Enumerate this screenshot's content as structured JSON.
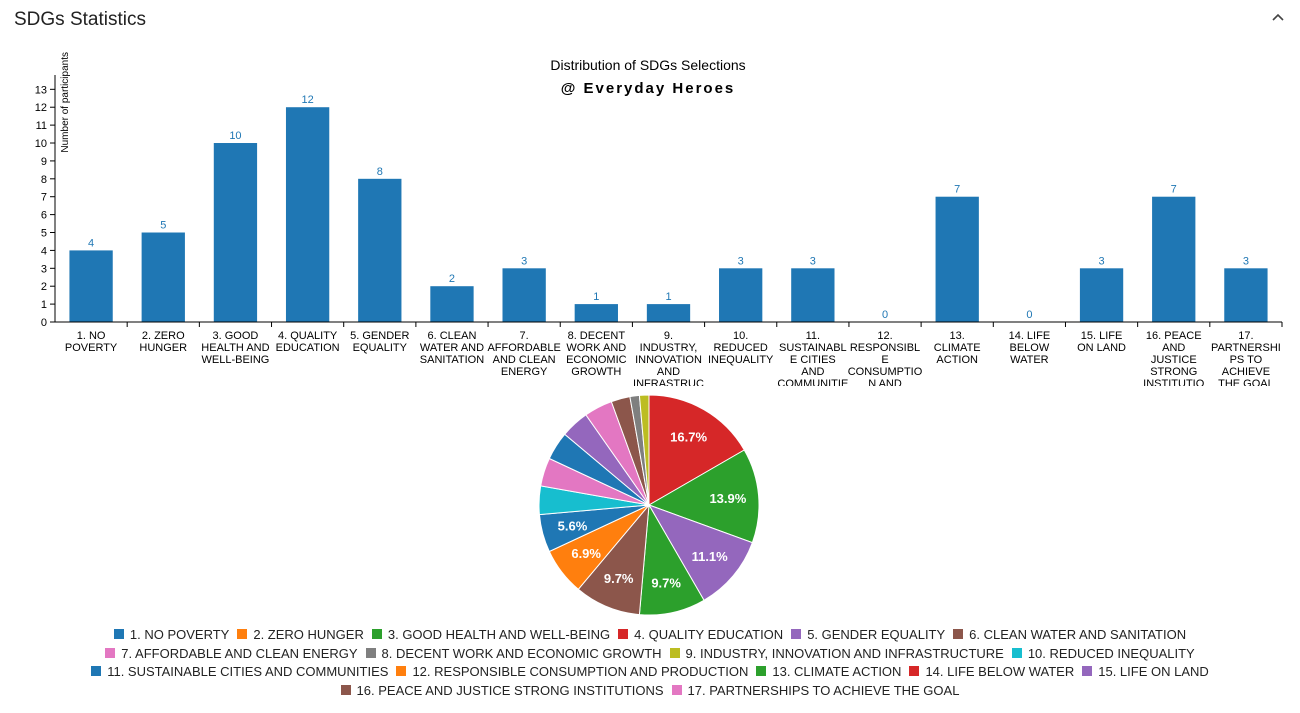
{
  "panel": {
    "title": "SDGs Statistics",
    "collapse_icon": "chevron-up-icon"
  },
  "chart_data": [
    {
      "type": "bar",
      "title": "Distribution of SDGs Selections",
      "subtitle": "@ Everyday Heroes",
      "xlabel": "",
      "ylabel": "Number of participants",
      "ylim": [
        0,
        13
      ],
      "yticks": [
        0,
        1,
        2,
        3,
        4,
        5,
        6,
        7,
        8,
        9,
        10,
        11,
        12,
        13
      ],
      "grid": false,
      "bar_color": "#1f77b4",
      "categories": [
        "1. NO POVERTY",
        "2. ZERO HUNGER",
        "3. GOOD HEALTH AND WELL-BEING",
        "4. QUALITY EDUCATION",
        "5. GENDER EQUALITY",
        "6. CLEAN WATER AND SANITATION",
        "7. AFFORDABLE AND CLEAN ENERGY",
        "8. DECENT WORK AND ECONOMIC GROWTH",
        "9. INDUSTRY, INNOVATION AND INFRASTRUCTURE",
        "10. REDUCED INEQUALITY",
        "11. SUSTAINABLE CITIES AND COMMUNITIES",
        "12. RESPONSIBLE CONSUMPTION AND PRODUCTION",
        "13. CLIMATE ACTION",
        "14. LIFE BELOW WATER",
        "15. LIFE ON LAND",
        "16. PEACE AND JUSTICE STRONG INSTITUTIONS",
        "17. PARTNERSHIPS TO ACHIEVE THE GOAL"
      ],
      "tick_label_lines": [
        [
          "1. NO",
          "POVERTY"
        ],
        [
          "2. ZERO",
          "HUNGER"
        ],
        [
          "3. GOOD",
          "HEALTH AND",
          "WELL-BEING"
        ],
        [
          "4. QUALITY",
          "EDUCATION"
        ],
        [
          "5. GENDER",
          "EQUALITY"
        ],
        [
          "6. CLEAN",
          "WATER AND",
          "SANITATION"
        ],
        [
          "7.",
          "AFFORDABLE",
          "AND CLEAN",
          "ENERGY"
        ],
        [
          "8. DECENT",
          "WORK AND",
          "ECONOMIC",
          "GROWTH"
        ],
        [
          "9.",
          "INDUSTRY,",
          "INNOVATION",
          "AND",
          "INFRASTRUC"
        ],
        [
          "10.",
          "REDUCED",
          "INEQUALITY"
        ],
        [
          "11.",
          "SUSTAINABL",
          "E CITIES",
          "AND",
          "COMMUNITIE"
        ],
        [
          "12.",
          "RESPONSIBL",
          "E",
          "CONSUMPTIO",
          "N AND"
        ],
        [
          "13.",
          "CLIMATE",
          "ACTION"
        ],
        [
          "14. LIFE",
          "BELOW",
          "WATER"
        ],
        [
          "15. LIFE",
          "ON LAND"
        ],
        [
          "16. PEACE",
          "AND",
          "JUSTICE",
          "STRONG",
          "INSTITUTIO"
        ],
        [
          "17.",
          "PARTNERSHI",
          "PS TO",
          "ACHIEVE",
          "THE GOAL"
        ]
      ],
      "values": [
        4,
        5,
        10,
        12,
        8,
        2,
        3,
        1,
        1,
        3,
        3,
        0,
        7,
        0,
        3,
        7,
        3
      ]
    },
    {
      "type": "pie",
      "values": [
        4,
        5,
        10,
        12,
        8,
        2,
        3,
        1,
        1,
        3,
        3,
        0,
        7,
        0,
        3,
        7,
        3
      ],
      "slice_labels": {
        "4. QUALITY EDUCATION": "16.7%",
        "3. GOOD HEALTH AND WELL-BEING": "13.9%",
        "5. GENDER EQUALITY": "11.1%",
        "13. CLIMATE ACTION": "9.7%",
        "16. PEACE AND JUSTICE STRONG INSTITUTIONS": "9.7%",
        "2. ZERO HUNGER": "6.9%",
        "1. NO POVERTY": "5.6%"
      },
      "colors": {
        "1. NO POVERTY": "#1f77b4",
        "2. ZERO HUNGER": "#ff7f0e",
        "3. GOOD HEALTH AND WELL-BEING": "#2ca02c",
        "4. QUALITY EDUCATION": "#d62728",
        "5. GENDER EQUALITY": "#9467bd",
        "6. CLEAN WATER AND SANITATION": "#8c564b",
        "7. AFFORDABLE AND CLEAN ENERGY": "#e377c2",
        "8. DECENT WORK AND ECONOMIC GROWTH": "#7f7f7f",
        "9. INDUSTRY, INNOVATION AND INFRASTRUCTURE": "#bcbd22",
        "10. REDUCED INEQUALITY": "#17becf",
        "11. SUSTAINABLE CITIES AND COMMUNITIES": "#1f77b4",
        "12. RESPONSIBLE CONSUMPTION AND PRODUCTION": "#ff7f0e",
        "13. CLIMATE ACTION": "#2ca02c",
        "14. LIFE BELOW WATER": "#d62728",
        "15. LIFE ON LAND": "#9467bd",
        "16. PEACE AND JUSTICE STRONG INSTITUTIONS": "#8c564b",
        "17. PARTNERSHIPS TO ACHIEVE THE GOAL": "#e377c2"
      },
      "slice_order": [
        "4. QUALITY EDUCATION",
        "3. GOOD HEALTH AND WELL-BEING",
        "5. GENDER EQUALITY",
        "13. CLIMATE ACTION",
        "16. PEACE AND JUSTICE STRONG INSTITUTIONS",
        "2. ZERO HUNGER",
        "1. NO POVERTY",
        "10. REDUCED INEQUALITY",
        "7. AFFORDABLE AND CLEAN ENERGY",
        "11. SUSTAINABLE CITIES AND COMMUNITIES",
        "15. LIFE ON LAND",
        "17. PARTNERSHIPS TO ACHIEVE THE GOAL",
        "6. CLEAN WATER AND SANITATION",
        "8. DECENT WORK AND ECONOMIC GROWTH",
        "9. INDUSTRY, INNOVATION AND INFRASTRUCTURE",
        "12. RESPONSIBLE CONSUMPTION AND PRODUCTION",
        "14. LIFE BELOW WATER"
      ],
      "legend_placement": "bottom",
      "legend_rows": [
        [
          "1. NO POVERTY",
          "2. ZERO HUNGER",
          "3. GOOD HEALTH AND WELL-BEING",
          "4. QUALITY EDUCATION",
          "5. GENDER EQUALITY",
          "6. CLEAN WATER AND SANITATION"
        ],
        [
          "7. AFFORDABLE AND CLEAN ENERGY",
          "8. DECENT WORK AND ECONOMIC GROWTH",
          "9. INDUSTRY, INNOVATION AND INFRASTRUCTURE",
          "10. REDUCED INEQUALITY"
        ],
        [
          "11. SUSTAINABLE CITIES AND COMMUNITIES",
          "12. RESPONSIBLE CONSUMPTION AND PRODUCTION",
          "13. CLIMATE ACTION",
          "14. LIFE BELOW WATER",
          "15. LIFE ON LAND"
        ],
        [
          "16. PEACE AND JUSTICE STRONG INSTITUTIONS",
          "17. PARTNERSHIPS TO ACHIEVE THE GOAL"
        ]
      ]
    }
  ]
}
